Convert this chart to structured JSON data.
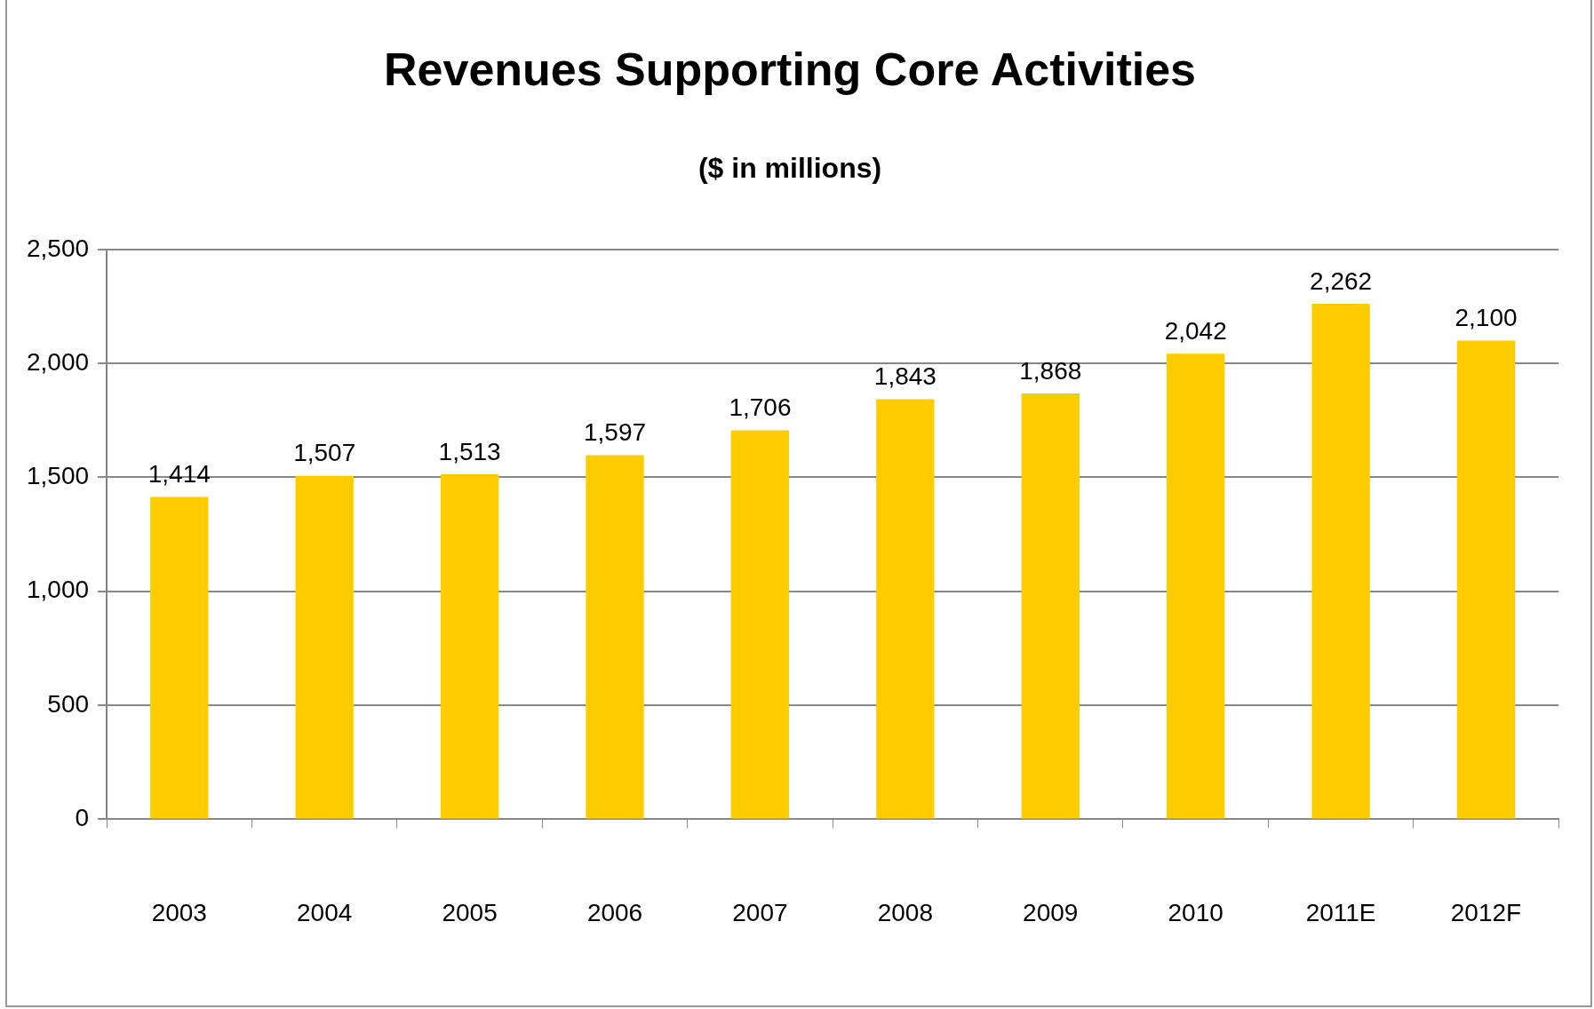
{
  "chart_data": {
    "type": "bar",
    "title": "Revenues Supporting Core Activities",
    "subtitle": "($ in millions)",
    "categories": [
      "2003",
      "2004",
      "2005",
      "2006",
      "2007",
      "2008",
      "2009",
      "2010",
      "2011E",
      "2012F"
    ],
    "values": [
      1414,
      1507,
      1513,
      1597,
      1706,
      1843,
      1868,
      2042,
      2262,
      2100
    ],
    "value_labels": [
      "1,414",
      "1,507",
      "1,513",
      "1,597",
      "1,706",
      "1,843",
      "1,868",
      "2,042",
      "2,262",
      "2,100"
    ],
    "color": "#ffcc00",
    "ylim": [
      0,
      2500
    ],
    "yticks": [
      0,
      500,
      {
        "value": 1000,
        "label": "1,000"
      },
      {
        "value": 1500,
        "label": "1,500"
      },
      {
        "value": 2000,
        "label": "2,000"
      },
      {
        "value": 2500,
        "label": "2,500"
      }
    ],
    "grid": "y",
    "legend": false
  }
}
